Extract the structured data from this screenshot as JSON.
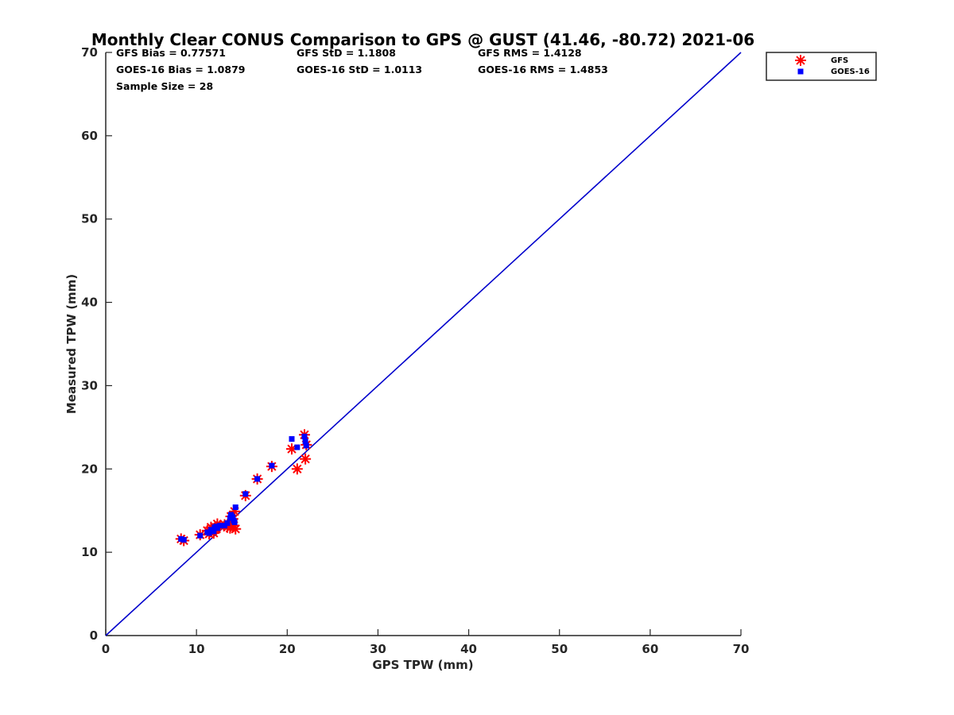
{
  "chart_data": {
    "type": "scatter",
    "title": "Monthly Clear CONUS Comparison to GPS @ GUST (41.46, -80.72) 2021-06",
    "xlabel": "GPS TPW (mm)",
    "ylabel": "Measured TPW (mm)",
    "xlim": [
      0,
      70
    ],
    "ylim": [
      0,
      70
    ],
    "xticks": [
      "0",
      "10",
      "20",
      "30",
      "40",
      "50",
      "60",
      "70"
    ],
    "yticks": [
      "0",
      "10",
      "20",
      "30",
      "40",
      "50",
      "60",
      "70"
    ],
    "grid": false,
    "legend_position": "top-right outside",
    "stats": {
      "gfs_bias": "GFS Bias = 0.77571",
      "gfs_std": "GFS StD = 1.1808",
      "gfs_rms": "GFS RMS = 1.4128",
      "goes_bias": "GOES-16 Bias = 1.0879",
      "goes_std": "GOES-16 StD = 1.0113",
      "goes_rms": "GOES-16 RMS = 1.4853",
      "sample_size": "Sample Size = 28"
    },
    "reference_line": {
      "color": "#0000cc",
      "x": [
        0,
        70
      ],
      "y": [
        0,
        70
      ]
    },
    "series": [
      {
        "name": "GFS",
        "marker": "asterisk",
        "color": "#ff0000",
        "x": [
          8.3,
          8.6,
          10.4,
          11.2,
          11.6,
          11.9,
          12.2,
          12.6,
          13.4,
          13.7,
          13.9,
          14.1,
          14.3,
          14.2,
          15.4,
          16.7,
          18.3,
          20.5,
          21.1,
          21.9,
          22.0,
          22.1,
          12.0,
          13.1,
          11.4,
          13.8,
          12.3,
          14.0
        ],
        "y": [
          11.6,
          11.4,
          12.1,
          12.6,
          13.0,
          12.3,
          12.8,
          13.2,
          13.0,
          12.9,
          13.6,
          13.2,
          12.8,
          14.9,
          16.8,
          18.8,
          20.3,
          22.4,
          20.0,
          24.1,
          21.2,
          22.9,
          12.9,
          13.3,
          12.2,
          14.3,
          13.4,
          14.0
        ]
      },
      {
        "name": "GOES-16",
        "marker": "square",
        "color": "#0000ff",
        "x": [
          8.3,
          8.6,
          10.4,
          11.2,
          11.6,
          11.9,
          12.2,
          12.6,
          13.4,
          13.7,
          13.9,
          14.1,
          14.3,
          14.2,
          15.4,
          16.7,
          18.3,
          20.5,
          21.1,
          21.9,
          22.0,
          22.1,
          12.0,
          13.1,
          11.4,
          13.8,
          12.3,
          14.0
        ],
        "y": [
          11.6,
          11.5,
          12.0,
          12.4,
          12.7,
          12.5,
          13.1,
          13.2,
          13.5,
          14.1,
          14.3,
          13.8,
          15.4,
          13.6,
          17.0,
          18.8,
          20.4,
          23.6,
          22.6,
          23.9,
          23.3,
          22.8,
          13.0,
          13.2,
          12.3,
          14.5,
          12.9,
          14.2
        ]
      }
    ]
  }
}
